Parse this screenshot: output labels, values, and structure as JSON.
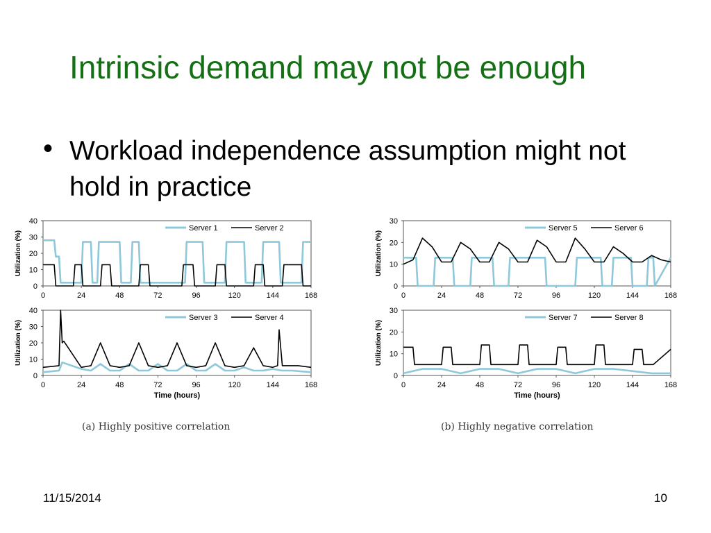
{
  "slide": {
    "title": "Intrinsic demand may not be enough",
    "bullet": "Workload independence assumption might not hold in practice",
    "caption_a": "(a) Highly positive correlation",
    "caption_b": "(b) Highly negative correlation",
    "date": "11/15/2014",
    "page": "10"
  },
  "colors": {
    "title": "#157015",
    "light_series": "#8ec8da",
    "dark_series": "#000000"
  },
  "chart_data": [
    {
      "id": "a-top",
      "type": "line",
      "xlabel": "",
      "ylabel": "Utilization (%)",
      "xlim": [
        0,
        168
      ],
      "ylim": [
        0,
        40
      ],
      "xticks": [
        0,
        24,
        48,
        72,
        96,
        120,
        144,
        168
      ],
      "yticks": [
        0,
        10,
        20,
        30,
        40
      ],
      "legend": "top-right",
      "series": [
        {
          "name": "Server 1",
          "color": "#8ec8da",
          "x": [
            0,
            7,
            8,
            10,
            11,
            24,
            25,
            30,
            31,
            34,
            35,
            48,
            49,
            55,
            56,
            60,
            61,
            72,
            73,
            89,
            90,
            100,
            101,
            114,
            115,
            126,
            127,
            137,
            138,
            148,
            149,
            162,
            163,
            168
          ],
          "y": [
            28,
            28,
            18,
            18,
            2,
            2,
            27,
            27,
            2,
            2,
            27,
            27,
            2,
            2,
            27,
            27,
            2,
            2,
            2,
            2,
            27,
            27,
            2,
            2,
            27,
            27,
            2,
            2,
            27,
            27,
            2,
            2,
            27,
            27
          ]
        },
        {
          "name": "Server 2",
          "color": "#000000",
          "x": [
            0,
            7,
            8,
            19,
            20,
            24,
            25,
            36,
            37,
            42,
            43,
            60,
            61,
            66,
            67,
            87,
            88,
            94,
            95,
            108,
            109,
            114,
            115,
            132,
            133,
            138,
            139,
            150,
            151,
            162,
            163,
            168
          ],
          "y": [
            13,
            13,
            0,
            0,
            13,
            13,
            0,
            0,
            13,
            13,
            0,
            0,
            13,
            13,
            0,
            0,
            13,
            13,
            0,
            0,
            13,
            13,
            0,
            0,
            13,
            13,
            0,
            0,
            13,
            13,
            0,
            0
          ]
        }
      ]
    },
    {
      "id": "a-bottom",
      "type": "line",
      "xlabel": "Time (hours)",
      "ylabel": "Utilization (%)",
      "xlim": [
        0,
        168
      ],
      "ylim": [
        0,
        40
      ],
      "xticks": [
        0,
        24,
        48,
        72,
        96,
        120,
        144,
        168
      ],
      "yticks": [
        0,
        10,
        20,
        30,
        40
      ],
      "legend": "top-right",
      "series": [
        {
          "name": "Server 3",
          "color": "#8ec8da",
          "x": [
            0,
            10,
            12,
            24,
            30,
            36,
            42,
            48,
            54,
            60,
            66,
            72,
            78,
            84,
            90,
            96,
            102,
            108,
            114,
            120,
            126,
            132,
            138,
            144,
            150,
            156,
            168
          ],
          "y": [
            2,
            3,
            8,
            4,
            3,
            7,
            3,
            3,
            7,
            3,
            3,
            7,
            3,
            3,
            7,
            3,
            3,
            7,
            3,
            3,
            5,
            3,
            3,
            4,
            3,
            3,
            2
          ]
        },
        {
          "name": "Server 4",
          "color": "#000000",
          "x": [
            0,
            10,
            11,
            12,
            13,
            24,
            30,
            36,
            42,
            48,
            54,
            60,
            66,
            72,
            78,
            84,
            90,
            96,
            102,
            108,
            114,
            120,
            126,
            132,
            138,
            144,
            147,
            148,
            150,
            152,
            156,
            160,
            168
          ],
          "y": [
            5,
            6,
            40,
            20,
            21,
            5,
            6,
            20,
            6,
            5,
            6,
            20,
            6,
            5,
            6,
            20,
            6,
            5,
            6,
            20,
            6,
            5,
            6,
            17,
            6,
            5,
            6,
            28,
            6,
            6,
            6,
            6,
            5
          ]
        }
      ]
    },
    {
      "id": "b-top",
      "type": "line",
      "xlabel": "",
      "ylabel": "Utilization (%)",
      "xlim": [
        0,
        168
      ],
      "ylim": [
        0,
        30
      ],
      "xticks": [
        0,
        24,
        48,
        72,
        96,
        120,
        144,
        168
      ],
      "yticks": [
        0,
        10,
        20,
        30
      ],
      "legend": "top-right",
      "series": [
        {
          "name": "Server 5",
          "color": "#8ec8da",
          "x": [
            0,
            8,
            9,
            19,
            20,
            31,
            32,
            42,
            43,
            56,
            57,
            66,
            67,
            89,
            90,
            108,
            109,
            124,
            125,
            131,
            132,
            143,
            144,
            153,
            154,
            157,
            158,
            168
          ],
          "y": [
            13,
            13,
            0,
            0,
            13,
            13,
            0,
            0,
            13,
            13,
            0,
            0,
            13,
            13,
            0,
            0,
            13,
            13,
            0,
            0,
            13,
            13,
            0,
            0,
            13,
            13,
            0,
            13
          ]
        },
        {
          "name": "Server 6",
          "color": "#000000",
          "x": [
            0,
            6,
            12,
            18,
            24,
            30,
            36,
            42,
            48,
            54,
            60,
            66,
            72,
            78,
            84,
            90,
            96,
            102,
            108,
            114,
            120,
            126,
            132,
            138,
            144,
            150,
            156,
            162,
            168
          ],
          "y": [
            10,
            12,
            22,
            18,
            11,
            11,
            20,
            17,
            11,
            11,
            20,
            17,
            11,
            11,
            21,
            18,
            11,
            11,
            22,
            17,
            11,
            11,
            18,
            15,
            11,
            11,
            14,
            12,
            11
          ]
        }
      ]
    },
    {
      "id": "b-bottom",
      "type": "line",
      "xlabel": "Time (hours)",
      "ylabel": "Utilization (%)",
      "xlim": [
        0,
        168
      ],
      "ylim": [
        0,
        30
      ],
      "xticks": [
        0,
        24,
        48,
        72,
        96,
        120,
        144,
        168
      ],
      "yticks": [
        0,
        10,
        20,
        30
      ],
      "legend": "top-right",
      "series": [
        {
          "name": "Server 7",
          "color": "#8ec8da",
          "x": [
            0,
            12,
            24,
            36,
            48,
            60,
            72,
            84,
            96,
            108,
            120,
            132,
            144,
            156,
            168
          ],
          "y": [
            1,
            3,
            3,
            1,
            3,
            3,
            1,
            3,
            3,
            1,
            3,
            3,
            2,
            1,
            1
          ]
        },
        {
          "name": "Server 8",
          "color": "#000000",
          "x": [
            0,
            6,
            7,
            12,
            13,
            24,
            25,
            30,
            31,
            36,
            37,
            48,
            49,
            54,
            55,
            60,
            61,
            72,
            73,
            78,
            79,
            84,
            85,
            96,
            97,
            102,
            103,
            108,
            109,
            120,
            121,
            126,
            127,
            132,
            133,
            144,
            145,
            150,
            151,
            156,
            157,
            168
          ],
          "y": [
            13,
            13,
            5,
            5,
            5,
            5,
            13,
            13,
            5,
            5,
            5,
            5,
            14,
            14,
            5,
            5,
            5,
            5,
            14,
            14,
            5,
            5,
            5,
            5,
            13,
            13,
            5,
            5,
            5,
            5,
            14,
            14,
            5,
            5,
            5,
            5,
            12,
            12,
            5,
            5,
            5,
            12
          ]
        }
      ]
    }
  ]
}
